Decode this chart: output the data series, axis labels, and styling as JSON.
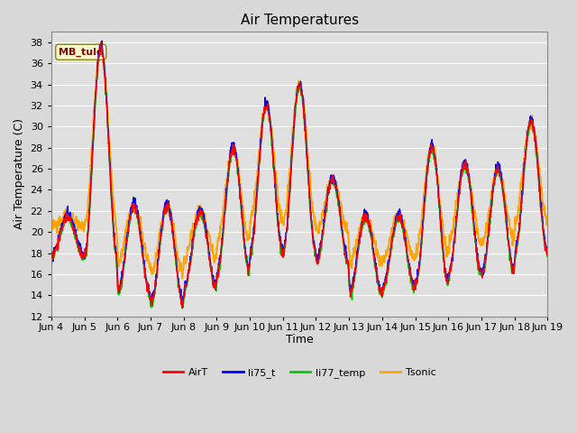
{
  "title": "Air Temperatures",
  "xlabel": "Time",
  "ylabel": "Air Temperature (C)",
  "ylim": [
    12,
    39
  ],
  "yticks": [
    12,
    14,
    16,
    18,
    20,
    22,
    24,
    26,
    28,
    30,
    32,
    34,
    36,
    38
  ],
  "xtick_labels": [
    "Jun 4",
    "Jun 5",
    "Jun 6",
    "Jun 7",
    "Jun 8",
    "Jun 9",
    "Jun 10",
    "Jun 11",
    "Jun 12",
    "Jun 13",
    "Jun 14",
    "Jun 15",
    "Jun 16",
    "Jun 17",
    "Jun 18",
    "Jun 19"
  ],
  "annotation_text": "MB_tule",
  "annotation_color": "#8B0000",
  "annotation_bg": "#FFFFCC",
  "line_colors": {
    "AirT": "#FF0000",
    "li75_t": "#0000FF",
    "li77_temp": "#00CC00",
    "Tsonic": "#FFA500"
  },
  "line_widths": {
    "AirT": 1.0,
    "li75_t": 1.0,
    "li77_temp": 1.2,
    "Tsonic": 1.5
  },
  "fig_bg": "#D8D8D8",
  "plot_bg": "#E0E0E0",
  "grid_color": "#FFFFFF",
  "title_fontsize": 11,
  "axis_fontsize": 9,
  "tick_fontsize": 8
}
